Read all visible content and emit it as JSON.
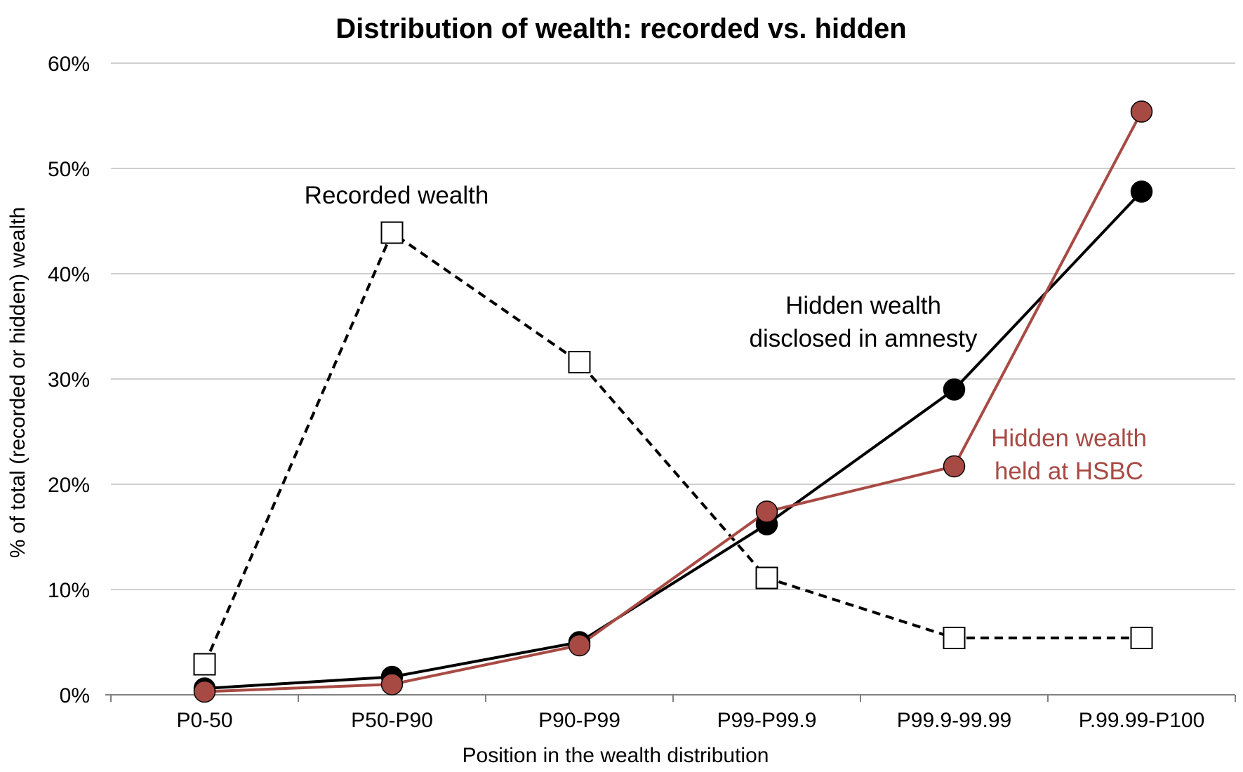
{
  "chart_data": {
    "type": "line",
    "title": "Distribution of wealth: recorded vs. hidden",
    "xlabel": "Position in the wealth distribution",
    "ylabel": "% of total (recorded or hidden) wealth",
    "categories": [
      "P0-50",
      "P50-P90",
      "P90-P99",
      "P99-P99.9",
      "P99.9-99.99",
      "P.99.99-P100"
    ],
    "ylim": [
      0,
      60
    ],
    "yticks": [
      0,
      10,
      20,
      30,
      40,
      50,
      60
    ],
    "ytick_labels": [
      "0%",
      "10%",
      "20%",
      "30%",
      "40%",
      "50%",
      "60%"
    ],
    "grid": true,
    "series": [
      {
        "key": "recorded",
        "values": [
          2.9,
          43.9,
          31.6,
          11.1,
          5.4,
          5.4
        ],
        "color": "#000000",
        "line_style": "dashed",
        "marker": "square-open"
      },
      {
        "key": "amnesty",
        "values": [
          0.6,
          1.7,
          5.0,
          16.2,
          29.0,
          47.8
        ],
        "color": "#000000",
        "line_style": "solid",
        "marker": "circle-filled"
      },
      {
        "key": "hsbc",
        "values": [
          0.3,
          1.0,
          4.7,
          17.4,
          21.7,
          55.4
        ],
        "color": "#A84A44",
        "line_style": "solid",
        "marker": "circle-filled"
      }
    ],
    "annotations": [
      {
        "key": "recorded",
        "lines": [
          "Recorded wealth"
        ],
        "color": "#000000"
      },
      {
        "key": "amnesty",
        "lines": [
          "Hidden wealth",
          "disclosed in amnesty"
        ],
        "color": "#000000"
      },
      {
        "key": "hsbc",
        "lines": [
          "Hidden wealth",
          "held at HSBC"
        ],
        "color": "#A84A44"
      }
    ]
  }
}
